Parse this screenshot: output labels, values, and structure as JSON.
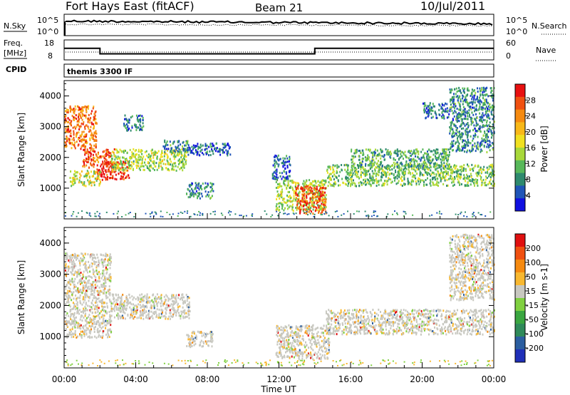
{
  "header": {
    "station": "Fort Hays East (fitACF)",
    "beam": "Beam 21",
    "date": "10/Jul/2011"
  },
  "top_panels": {
    "nsky_label": "N.Sky",
    "nsky_ticks": [
      "10^5",
      "10^0"
    ],
    "nsearch_label": "N.Search",
    "nsearch_ticks": [
      "10^5",
      "10^0"
    ],
    "freq_label": "Freq.",
    "freq_unit": "[MHz]",
    "freq_ticks": [
      "18",
      "8"
    ],
    "nave_label": "Nave",
    "nave_ticks": [
      "60",
      "0"
    ],
    "cpid_label": "CPID",
    "cpid_text": "themis 3300 IF",
    "freq_segments": [
      {
        "from_hour": 0,
        "to_hour": 2,
        "mhz": 14.0
      },
      {
        "from_hour": 2,
        "to_hour": 14,
        "mhz": 10.5
      },
      {
        "from_hour": 14,
        "to_hour": 24,
        "mhz": 14.0
      }
    ]
  },
  "chart_data": [
    {
      "type": "heatmap",
      "name": "power",
      "ylabel": "Slant Range [km]",
      "yticks": [
        "1000",
        "2000",
        "3000",
        "4000"
      ],
      "ylim": [
        0,
        4500
      ],
      "xlim_hours": [
        0,
        24
      ],
      "colorbar_label": "Power [dB]",
      "colorbar_ticks": [
        "4",
        "8",
        "12",
        "16",
        "20",
        "24",
        "28"
      ],
      "colorbar_colors": [
        "#1010e0",
        "#1f55b8",
        "#2e8a6e",
        "#58b85a",
        "#a8d83a",
        "#f0e020",
        "#f8b818",
        "#f58a10",
        "#f05010",
        "#e81010"
      ],
      "echo_regions": [
        {
          "h0": 0.0,
          "h1": 1.8,
          "r0": 2300,
          "r1": 3700,
          "dB": 24
        },
        {
          "h0": 1.0,
          "h1": 2.8,
          "r0": 1700,
          "r1": 2300,
          "dB": 26
        },
        {
          "h0": 1.8,
          "h1": 3.6,
          "r0": 1300,
          "r1": 1900,
          "dB": 28
        },
        {
          "h0": 0.3,
          "h1": 2.0,
          "r0": 1100,
          "r1": 1600,
          "dB": 16
        },
        {
          "h0": 2.6,
          "h1": 6.8,
          "r0": 1600,
          "r1": 2300,
          "dB": 14
        },
        {
          "h0": 5.5,
          "h1": 6.9,
          "r0": 2200,
          "r1": 2600,
          "dB": 8
        },
        {
          "h0": 6.9,
          "h1": 9.3,
          "r0": 2100,
          "r1": 2500,
          "dB": 6
        },
        {
          "h0": 3.3,
          "h1": 4.4,
          "r0": 2900,
          "r1": 3400,
          "dB": 8
        },
        {
          "h0": 6.8,
          "h1": 8.3,
          "r0": 700,
          "r1": 1200,
          "dB": 8
        },
        {
          "h0": 11.8,
          "h1": 14.6,
          "r0": 300,
          "r1": 1300,
          "dB": 14
        },
        {
          "h0": 12.9,
          "h1": 14.6,
          "r0": 200,
          "r1": 1100,
          "dB": 26
        },
        {
          "h0": 11.6,
          "h1": 12.6,
          "r0": 1300,
          "r1": 2100,
          "dB": 6
        },
        {
          "h0": 14.6,
          "h1": 24.0,
          "r0": 1100,
          "r1": 1800,
          "dB": 12
        },
        {
          "h0": 16.0,
          "h1": 21.5,
          "r0": 1700,
          "r1": 2300,
          "dB": 10
        },
        {
          "h0": 21.5,
          "h1": 24.0,
          "r0": 2200,
          "r1": 4300,
          "dB": 8
        },
        {
          "h0": 20.0,
          "h1": 21.5,
          "r0": 3300,
          "r1": 3800,
          "dB": 6
        }
      ]
    },
    {
      "type": "heatmap",
      "name": "velocity",
      "ylabel": "Slant Range [km]",
      "yticks": [
        "1000",
        "2000",
        "3000",
        "4000"
      ],
      "ylim": [
        0,
        4500
      ],
      "xlim_hours": [
        0,
        24
      ],
      "colorbar_label": "Velocity [m s-1]",
      "colorbar_ticks": [
        "200",
        "100",
        "50",
        "15",
        "-15",
        "-50",
        "-100",
        "-200"
      ],
      "colorbar_colors": [
        "#1f2fb8",
        "#2b5ea0",
        "#2f8a5a",
        "#3aa640",
        "#80d040",
        "#c8c8c0",
        "#f8b830",
        "#f58a10",
        "#f05010",
        "#e01010"
      ],
      "echo_regions": [
        {
          "h0": 0.0,
          "h1": 2.6,
          "r0": 1000,
          "r1": 3700,
          "v": 0
        },
        {
          "h0": 2.6,
          "h1": 7.0,
          "r0": 1600,
          "r1": 2400,
          "v": 0
        },
        {
          "h0": 6.8,
          "h1": 8.3,
          "r0": 700,
          "r1": 1200,
          "v": 0
        },
        {
          "h0": 11.8,
          "h1": 14.8,
          "r0": 300,
          "r1": 1400,
          "v": 0
        },
        {
          "h0": 14.6,
          "h1": 24.0,
          "r0": 1100,
          "r1": 1900,
          "v": 0
        },
        {
          "h0": 21.5,
          "h1": 24.0,
          "r0": 2200,
          "r1": 4300,
          "v": 0
        }
      ]
    }
  ],
  "xaxis": {
    "ticks": [
      "00:00",
      "04:00",
      "08:00",
      "12:00",
      "16:00",
      "20:00",
      "00:00"
    ],
    "label": "Time UT"
  }
}
